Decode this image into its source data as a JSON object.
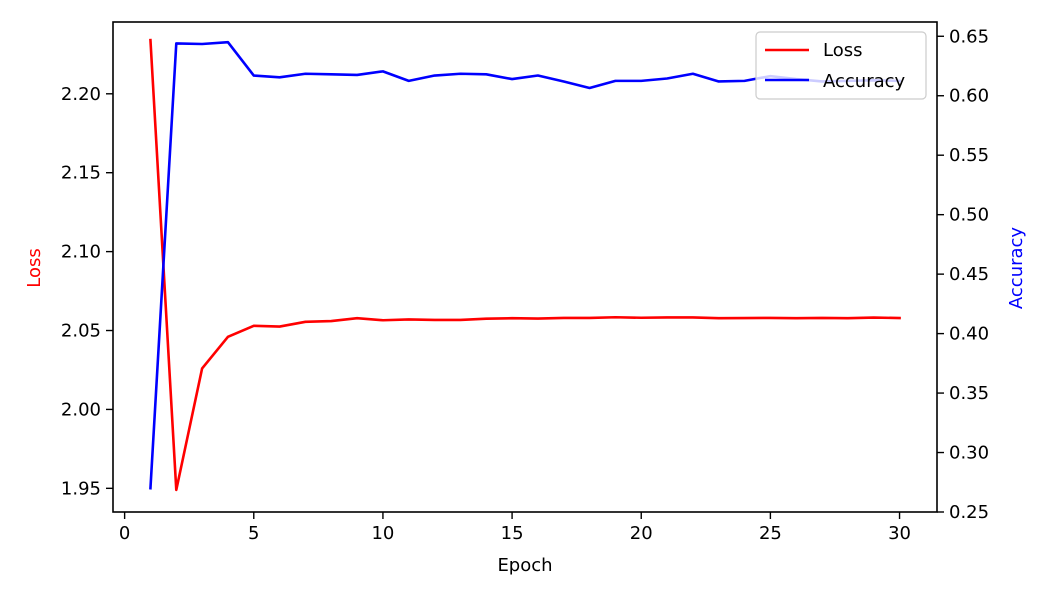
{
  "chart_data": {
    "type": "line",
    "xlabel": "Epoch",
    "ylabel_left": "Loss",
    "ylabel_right": "Accuracy",
    "xlim": [
      -0.45,
      31.45
    ],
    "ylim_left": [
      1.935,
      2.2455
    ],
    "ylim_right": [
      0.25,
      0.662
    ],
    "x_ticks": [
      0,
      5,
      10,
      15,
      20,
      25,
      30
    ],
    "y_left_ticks": [
      1.95,
      2.0,
      2.05,
      2.1,
      2.15,
      2.2
    ],
    "y_right_ticks": [
      0.25,
      0.3,
      0.35,
      0.4,
      0.45,
      0.5,
      0.55,
      0.6,
      0.65
    ],
    "legend_position": "top-right",
    "grid": false,
    "x": [
      1,
      2,
      3,
      4,
      5,
      6,
      7,
      8,
      9,
      10,
      11,
      12,
      13,
      14,
      15,
      16,
      17,
      18,
      19,
      20,
      21,
      22,
      23,
      24,
      25,
      26,
      27,
      28,
      29,
      30
    ],
    "series": [
      {
        "name": "Loss",
        "axis": "left",
        "color": "#ff0000",
        "values": [
          2.234,
          1.949,
          2.026,
          2.046,
          2.053,
          2.0525,
          2.0555,
          2.056,
          2.0578,
          2.0565,
          2.057,
          2.0567,
          2.0567,
          2.0575,
          2.0578,
          2.0576,
          2.058,
          2.058,
          2.0584,
          2.0581,
          2.0583,
          2.0583,
          2.0578,
          2.0579,
          2.058,
          2.0578,
          2.058,
          2.0578,
          2.0582,
          2.0579
        ]
      },
      {
        "name": "Accuracy",
        "axis": "right",
        "color": "#0000ff",
        "values": [
          0.27,
          0.644,
          0.6435,
          0.645,
          0.617,
          0.6155,
          0.6185,
          0.618,
          0.6175,
          0.6205,
          0.6125,
          0.617,
          0.6185,
          0.618,
          0.614,
          0.617,
          0.612,
          0.6065,
          0.6125,
          0.6125,
          0.6145,
          0.6185,
          0.612,
          0.6125,
          0.6165,
          0.614,
          0.612,
          0.6125,
          0.613,
          0.6125
        ]
      }
    ]
  }
}
